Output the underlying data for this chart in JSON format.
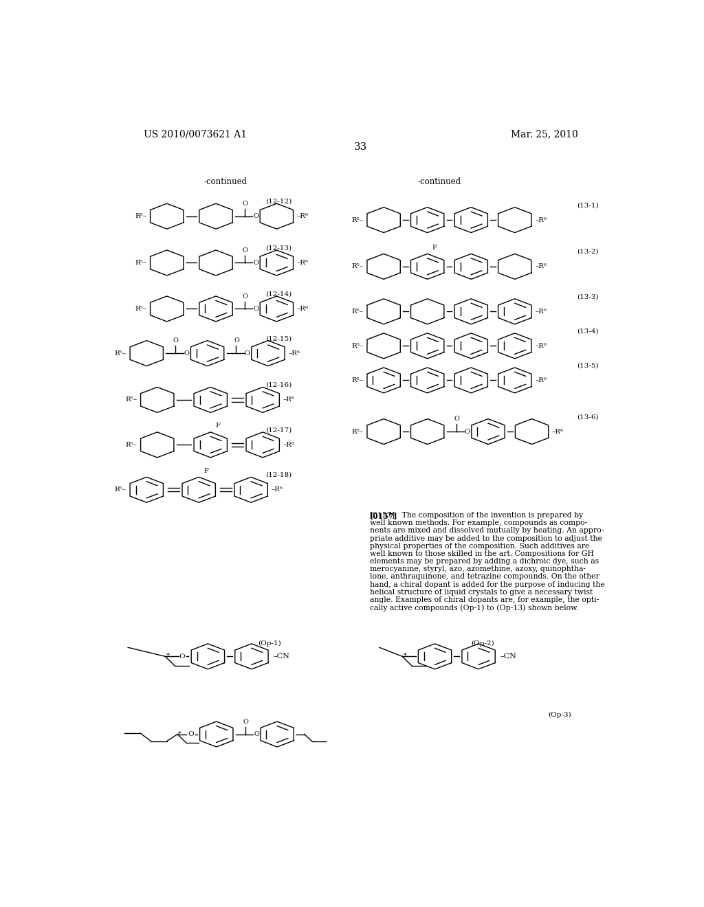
{
  "page_header_left": "US 2010/0073621 A1",
  "page_header_right": "Mar. 25, 2010",
  "page_number": "33",
  "para_text_lines": [
    "[0157]   The composition of the invention is prepared by",
    "well known methods. For example, compounds as compo-",
    "nents are mixed and dissolved mutually by heating. An appro-",
    "priate additive may be added to the composition to adjust the",
    "physical properties of the composition. Such additives are",
    "well known to those skilled in the art. Compositions for GH",
    "elements may be prepared by adding a dichroic dye, such as",
    "merocyanine, styryl, azo, azomethine, azoxy, quinophtha-",
    "lone, anthraquinone, and tetrazine compounds. On the other",
    "hand, a chiral dopant is added for the purpose of inducing the",
    "helical structure of liquid crystals to give a necessary twist",
    "angle. Examples of chiral dopants are, for example, the opti-",
    "cally active compounds (Op-1) to (Op-13) shown below."
  ]
}
